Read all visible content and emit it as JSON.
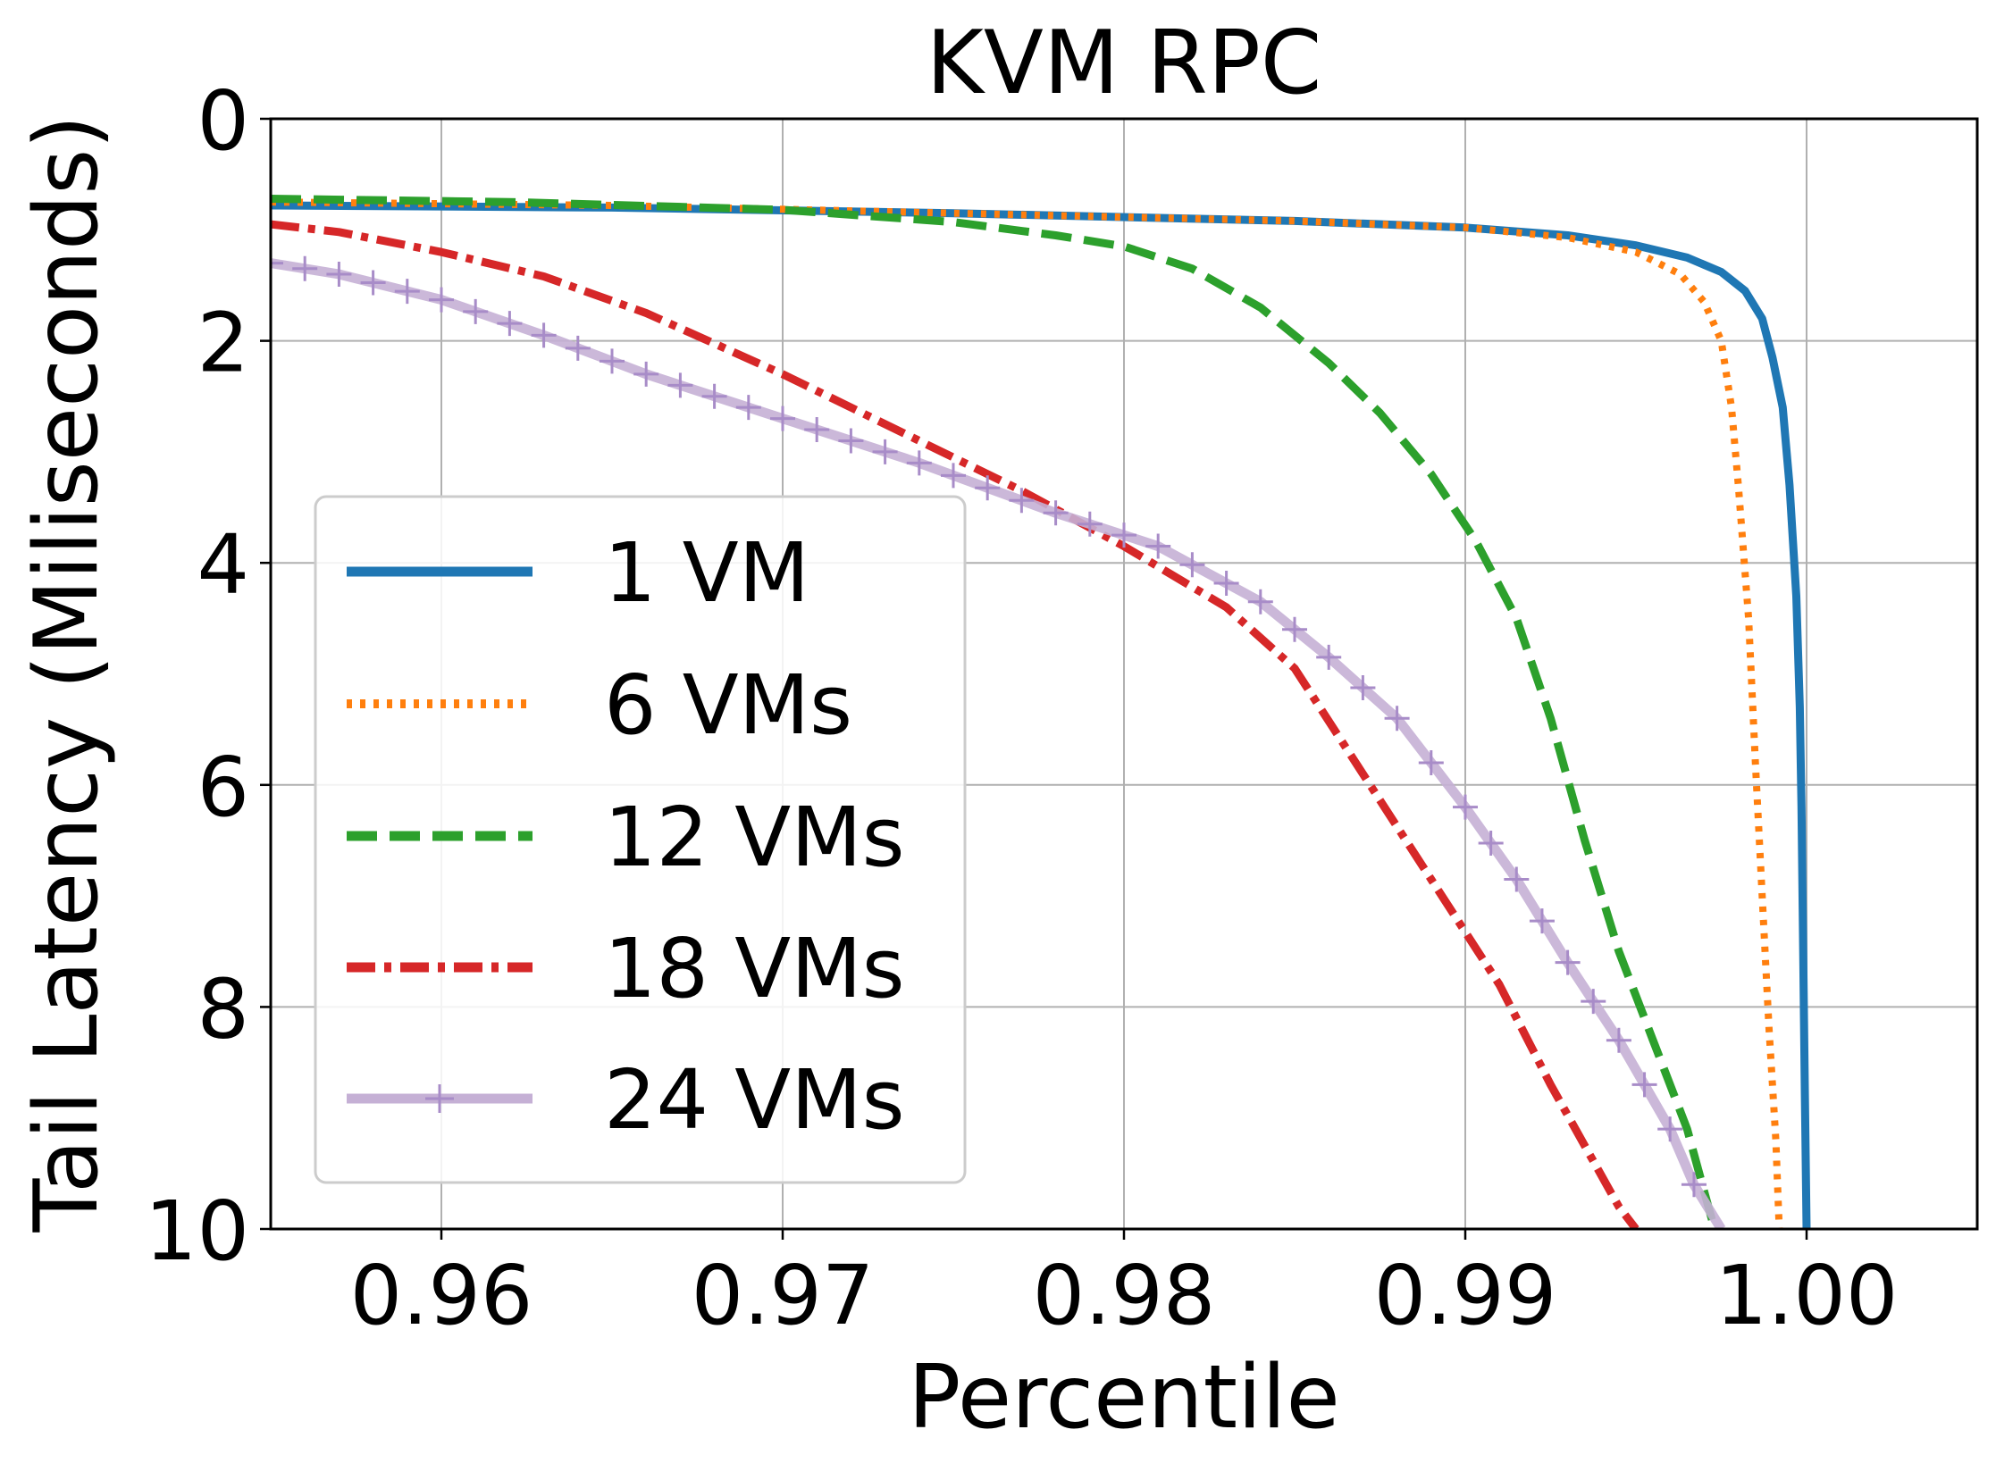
{
  "chart_data": {
    "type": "line",
    "title": "KVM RPC",
    "xlabel": "Percentile",
    "ylabel": "Tail Latency (Miliseconds)",
    "xlim": [
      0.955,
      1.005
    ],
    "ylim": [
      10,
      0
    ],
    "y_inverted": true,
    "grid": true,
    "xticks": [
      0.96,
      0.97,
      0.98,
      0.99,
      1.0
    ],
    "xtick_labels": [
      "0.96",
      "0.97",
      "0.98",
      "0.99",
      "1.00"
    ],
    "yticks": [
      0,
      2,
      4,
      6,
      8,
      10
    ],
    "ytick_labels": [
      "0",
      "2",
      "4",
      "6",
      "8",
      "10"
    ],
    "legend_position": "lower-left",
    "series": [
      {
        "name": "1 VM",
        "color": "#1f77b4",
        "style": "solid",
        "points": [
          [
            0.955,
            0.78
          ],
          [
            0.965,
            0.8
          ],
          [
            0.975,
            0.85
          ],
          [
            0.985,
            0.92
          ],
          [
            0.99,
            0.98
          ],
          [
            0.993,
            1.05
          ],
          [
            0.995,
            1.14
          ],
          [
            0.9965,
            1.25
          ],
          [
            0.9975,
            1.38
          ],
          [
            0.9982,
            1.55
          ],
          [
            0.9987,
            1.8
          ],
          [
            0.999,
            2.15
          ],
          [
            0.9993,
            2.6
          ],
          [
            0.9995,
            3.3
          ],
          [
            0.9997,
            4.3
          ],
          [
            0.9998,
            5.3
          ],
          [
            0.99985,
            6.2
          ],
          [
            0.9999,
            7.5
          ],
          [
            0.99995,
            8.8
          ],
          [
            1.0,
            10.0
          ]
        ]
      },
      {
        "name": "6 VMs",
        "color": "#ff7f0e",
        "style": "dotted",
        "points": [
          [
            0.955,
            0.75
          ],
          [
            0.965,
            0.78
          ],
          [
            0.975,
            0.85
          ],
          [
            0.985,
            0.92
          ],
          [
            0.99,
            0.98
          ],
          [
            0.993,
            1.07
          ],
          [
            0.995,
            1.2
          ],
          [
            0.9963,
            1.4
          ],
          [
            0.997,
            1.65
          ],
          [
            0.9975,
            2.0
          ],
          [
            0.9978,
            2.6
          ],
          [
            0.998,
            3.3
          ],
          [
            0.9983,
            4.5
          ],
          [
            0.9985,
            5.8
          ],
          [
            0.9987,
            7.0
          ],
          [
            0.9989,
            8.2
          ],
          [
            0.9991,
            9.2
          ],
          [
            0.9992,
            10.0
          ]
        ]
      },
      {
        "name": "12 VMs",
        "color": "#2ca02c",
        "style": "dashed",
        "points": [
          [
            0.955,
            0.72
          ],
          [
            0.962,
            0.75
          ],
          [
            0.97,
            0.82
          ],
          [
            0.975,
            0.93
          ],
          [
            0.978,
            1.05
          ],
          [
            0.98,
            1.15
          ],
          [
            0.982,
            1.35
          ],
          [
            0.984,
            1.7
          ],
          [
            0.986,
            2.2
          ],
          [
            0.9875,
            2.65
          ],
          [
            0.989,
            3.2
          ],
          [
            0.9903,
            3.8
          ],
          [
            0.9915,
            4.5
          ],
          [
            0.9925,
            5.4
          ],
          [
            0.9935,
            6.5
          ],
          [
            0.9945,
            7.5
          ],
          [
            0.9955,
            8.3
          ],
          [
            0.9965,
            9.1
          ],
          [
            0.9973,
            10.0
          ]
        ]
      },
      {
        "name": "18 VMs",
        "color": "#d62728",
        "style": "dashdot",
        "points": [
          [
            0.955,
            0.95
          ],
          [
            0.957,
            1.02
          ],
          [
            0.96,
            1.2
          ],
          [
            0.963,
            1.42
          ],
          [
            0.966,
            1.75
          ],
          [
            0.97,
            2.3
          ],
          [
            0.974,
            2.9
          ],
          [
            0.977,
            3.35
          ],
          [
            0.98,
            3.85
          ],
          [
            0.983,
            4.4
          ],
          [
            0.985,
            4.95
          ],
          [
            0.987,
            5.9
          ],
          [
            0.989,
            6.85
          ],
          [
            0.991,
            7.8
          ],
          [
            0.9925,
            8.7
          ],
          [
            0.9945,
            9.8
          ],
          [
            0.995,
            10.0
          ]
        ]
      },
      {
        "name": "24 VMs",
        "color": "#c5b0d5",
        "style": "solid-plus",
        "points": [
          [
            0.955,
            1.3
          ],
          [
            0.957,
            1.4
          ],
          [
            0.96,
            1.63
          ],
          [
            0.963,
            1.95
          ],
          [
            0.966,
            2.3
          ],
          [
            0.97,
            2.7
          ],
          [
            0.974,
            3.1
          ],
          [
            0.978,
            3.55
          ],
          [
            0.981,
            3.85
          ],
          [
            0.984,
            4.35
          ],
          [
            0.986,
            4.85
          ],
          [
            0.988,
            5.4
          ],
          [
            0.99,
            6.2
          ],
          [
            0.9915,
            6.85
          ],
          [
            0.993,
            7.6
          ],
          [
            0.9945,
            8.3
          ],
          [
            0.996,
            9.1
          ],
          [
            0.9967,
            9.6
          ],
          [
            0.9975,
            10.0
          ]
        ]
      }
    ]
  }
}
